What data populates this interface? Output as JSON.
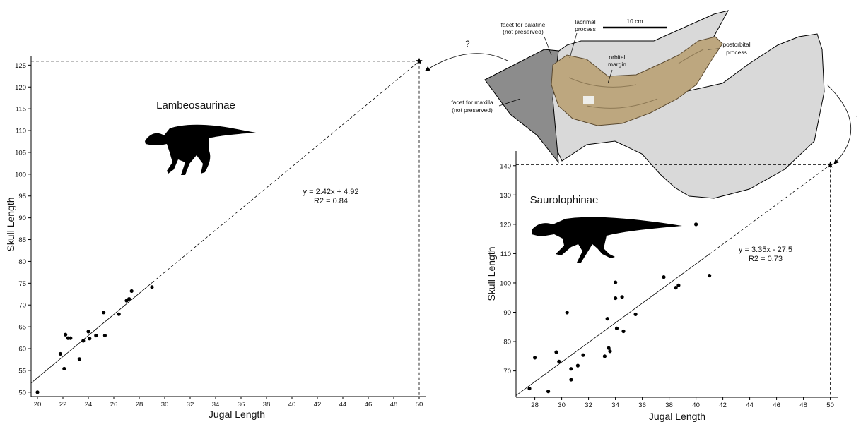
{
  "colors": {
    "point": "#000000",
    "line": "#000000",
    "bone": "#bda77f",
    "light_reconstruction": "#d9d9d9",
    "dark_reconstruction": "#8c8c8c"
  },
  "chart_data": [
    {
      "type": "scatter",
      "title": "Lambeosaurinae",
      "xlabel": "Jugal Length",
      "ylabel": "Skull Length",
      "xlim": [
        19.5,
        50.5
      ],
      "ylim": [
        49,
        127
      ],
      "xticks": [
        20,
        22,
        24,
        26,
        28,
        30,
        32,
        34,
        36,
        38,
        40,
        42,
        44,
        46,
        48,
        50
      ],
      "yticks": [
        50,
        55,
        60,
        65,
        70,
        75,
        80,
        85,
        90,
        95,
        100,
        105,
        110,
        115,
        120,
        125
      ],
      "equation": "y = 2.42x + 4.92",
      "r2": "R2 = 0.84",
      "regression": {
        "slope": 2.42,
        "intercept": 4.92
      },
      "predicted_point": {
        "x": 50,
        "y": 125.9
      },
      "points": [
        {
          "x": 20.0,
          "y": 50.0
        },
        {
          "x": 21.8,
          "y": 58.8
        },
        {
          "x": 22.1,
          "y": 55.4
        },
        {
          "x": 22.2,
          "y": 63.2
        },
        {
          "x": 22.4,
          "y": 62.4
        },
        {
          "x": 22.6,
          "y": 62.4
        },
        {
          "x": 23.3,
          "y": 57.6
        },
        {
          "x": 23.6,
          "y": 61.8
        },
        {
          "x": 24.0,
          "y": 63.9
        },
        {
          "x": 24.1,
          "y": 62.3
        },
        {
          "x": 24.6,
          "y": 63.0
        },
        {
          "x": 25.2,
          "y": 68.3
        },
        {
          "x": 25.3,
          "y": 63.0
        },
        {
          "x": 26.4,
          "y": 67.9
        },
        {
          "x": 27.0,
          "y": 71.0
        },
        {
          "x": 27.2,
          "y": 71.4
        },
        {
          "x": 27.4,
          "y": 73.2
        },
        {
          "x": 29.0,
          "y": 74.1
        }
      ]
    },
    {
      "type": "scatter",
      "title": "Saurolophinae",
      "xlabel": "Jugal Length",
      "ylabel": "Skull Length",
      "xlim": [
        26.6,
        50.6
      ],
      "ylim": [
        61,
        145
      ],
      "xticks": [
        28,
        30,
        32,
        34,
        36,
        38,
        40,
        42,
        44,
        46,
        48,
        50
      ],
      "yticks": [
        70,
        80,
        90,
        100,
        110,
        120,
        130,
        140
      ],
      "equation": "y = 3.35x - 27.5",
      "r2": "R2 = 0.73",
      "regression": {
        "slope": 3.35,
        "intercept": -27.5
      },
      "predicted_point": {
        "x": 50,
        "y": 140.3
      },
      "points": [
        {
          "x": 27.6,
          "y": 64.0
        },
        {
          "x": 28.0,
          "y": 74.5
        },
        {
          "x": 29.0,
          "y": 63.0
        },
        {
          "x": 29.6,
          "y": 76.4
        },
        {
          "x": 29.8,
          "y": 73.2
        },
        {
          "x": 30.4,
          "y": 89.9
        },
        {
          "x": 30.7,
          "y": 70.7
        },
        {
          "x": 30.7,
          "y": 67.0
        },
        {
          "x": 31.2,
          "y": 71.8
        },
        {
          "x": 31.6,
          "y": 75.4
        },
        {
          "x": 33.2,
          "y": 75.0
        },
        {
          "x": 33.4,
          "y": 87.8
        },
        {
          "x": 33.5,
          "y": 77.8
        },
        {
          "x": 33.6,
          "y": 76.7
        },
        {
          "x": 34.0,
          "y": 100.2
        },
        {
          "x": 34.0,
          "y": 94.8
        },
        {
          "x": 34.1,
          "y": 84.5
        },
        {
          "x": 34.5,
          "y": 95.2
        },
        {
          "x": 34.6,
          "y": 83.5
        },
        {
          "x": 35.5,
          "y": 89.3
        },
        {
          "x": 37.6,
          "y": 102.0
        },
        {
          "x": 38.5,
          "y": 98.4
        },
        {
          "x": 38.7,
          "y": 99.2
        },
        {
          "x": 40.0,
          "y": 120.0
        },
        {
          "x": 41.0,
          "y": 102.5
        }
      ]
    }
  ],
  "specimen_figure": {
    "scale_bar_label": "10 cm",
    "labels": {
      "palatine": [
        "facet for palatine",
        "(not preserved)"
      ],
      "lacrimal": [
        "lacrimal",
        "process"
      ],
      "orbital": [
        "orbital",
        "margin"
      ],
      "postorbital": [
        "postorbital",
        "process"
      ],
      "maxilla": [
        "facet for maxilla",
        "(not preserved)"
      ]
    },
    "question_mark": "?",
    "right_arrow_mark": "’"
  }
}
